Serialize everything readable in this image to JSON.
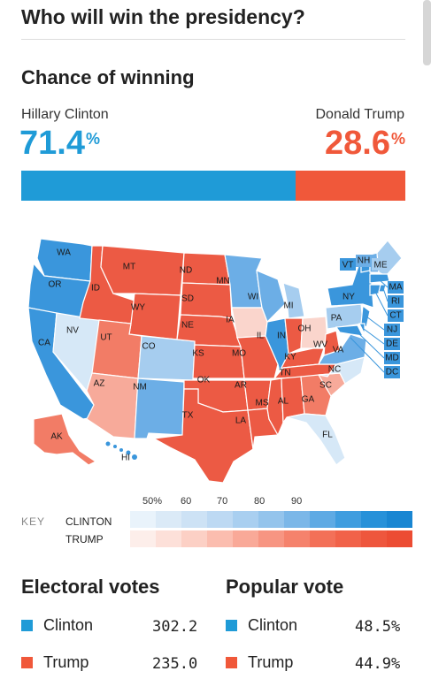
{
  "page": {
    "title": "Who will win the presidency?",
    "chance_heading": "Chance of winning"
  },
  "candidates": {
    "clinton": {
      "name": "Hillary Clinton",
      "pct": "71.4",
      "pct_value": 71.4,
      "color": "#1f9bd7"
    },
    "trump": {
      "name": "Donald Trump",
      "pct": "28.6",
      "pct_value": 28.6,
      "color": "#f0583a"
    },
    "pct_unit": "%"
  },
  "key": {
    "label": "KEY",
    "ticks": [
      "50%",
      "60",
      "70",
      "80",
      "90"
    ],
    "clinton_label": "CLINTON",
    "trump_label": "TRUMP",
    "clinton_shades": [
      "#e9f3fb",
      "#dbeaf7",
      "#cde2f5",
      "#bdd9f3",
      "#a9cff0",
      "#94c4ec",
      "#7bb7e8",
      "#5eaae4",
      "#3f9ddf",
      "#2791d9",
      "#1986d2"
    ],
    "trump_shades": [
      "#fdeeea",
      "#fde0d9",
      "#fcd0c5",
      "#fbbdaf",
      "#f9a998",
      "#f79582",
      "#f5826c",
      "#f37058",
      "#f16249",
      "#ee563d",
      "#ec4c33"
    ]
  },
  "electoral": {
    "heading": "Electoral votes",
    "rows": [
      {
        "name": "Clinton",
        "value": "302.2",
        "color": "#1f9bd7"
      },
      {
        "name": "Trump",
        "value": "235.0",
        "color": "#f0583a"
      }
    ]
  },
  "popular": {
    "heading": "Popular vote",
    "rows": [
      {
        "name": "Clinton",
        "value": "48.5%",
        "color": "#1f9bd7"
      },
      {
        "name": "Trump",
        "value": "44.9%",
        "color": "#f0583a"
      }
    ]
  },
  "map": {
    "states": {
      "WA": "WA",
      "OR": "OR",
      "CA": "CA",
      "NV": "NV",
      "ID": "ID",
      "MT": "MT",
      "WY": "WY",
      "UT": "UT",
      "AZ": "AZ",
      "CO": "CO",
      "NM": "NM",
      "ND": "ND",
      "SD": "SD",
      "NE": "NE",
      "KS": "KS",
      "OK": "OK",
      "TX": "TX",
      "MN": "MN",
      "IA": "IA",
      "MO": "MO",
      "AR": "AR",
      "LA": "LA",
      "WI": "WI",
      "IL": "IL",
      "MS": "MS",
      "MI": "MI",
      "IN": "IN",
      "KY": "KY",
      "TN": "TN",
      "AL": "AL",
      "OH": "OH",
      "WV": "WV",
      "VA": "VA",
      "NC": "NC",
      "SC": "SC",
      "GA": "GA",
      "FL": "FL",
      "PA": "PA",
      "NY": "NY",
      "VT": "VT",
      "NH": "NH",
      "ME": "ME",
      "MA": "MA",
      "RI": "RI",
      "CT": "CT",
      "NJ": "NJ",
      "DE": "DE",
      "MD": "MD",
      "DC": "DC",
      "AK": "AK",
      "HI": "HI"
    },
    "colors": {
      "safe_dem": "#3a96dc",
      "likely_dem": "#6caee6",
      "lean_dem": "#a6cdef",
      "tossup_dem": "#d6e8f7",
      "safe_rep": "#ec5a44",
      "likely_rep": "#f27c66",
      "lean_rep": "#f7aa9a",
      "tossup_rep": "#fad5cc"
    }
  }
}
